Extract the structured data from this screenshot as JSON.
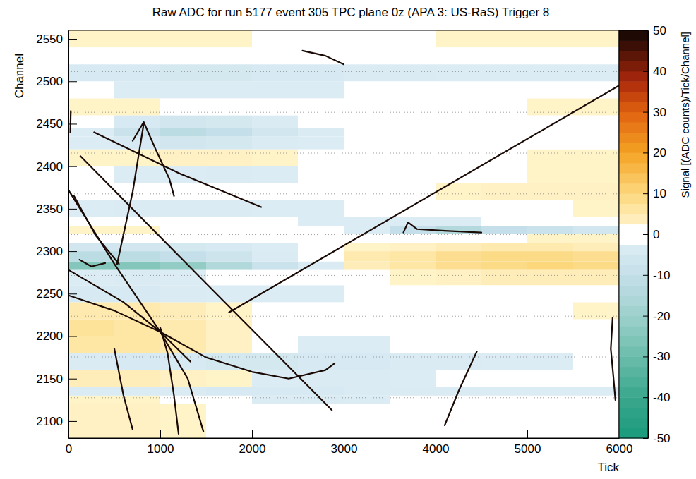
{
  "chart_data": {
    "type": "heatmap",
    "title": "Raw ADC for run 5177 event 305 TPC plane 0z (APA 3: US-RaS) Trigger 8",
    "x_label": "Tick",
    "y_label": "Channel",
    "xlim": [
      0,
      6000
    ],
    "xticks": [
      0,
      1000,
      2000,
      3000,
      4000,
      5000,
      6000
    ],
    "ylim": [
      2080,
      2560
    ],
    "yticks": [
      2100,
      2150,
      2200,
      2250,
      2300,
      2350,
      2400,
      2450,
      2500,
      2550
    ],
    "colorbar": {
      "label": "Signal [(ADC counts)/Tick/Channel]",
      "range": [
        -50,
        50
      ],
      "ticks": [
        -50,
        -40,
        -30,
        -20,
        -10,
        0,
        10,
        20,
        30,
        40,
        50
      ]
    },
    "x_bins": [
      0,
      500,
      1000,
      1500,
      2000,
      2500,
      3000,
      3500,
      4000,
      4500,
      5000,
      5500,
      6000
    ],
    "y_bins": [
      2080,
      2100,
      2120,
      2130,
      2140,
      2160,
      2180,
      2200,
      2220,
      2240,
      2260,
      2278,
      2288,
      2300,
      2310,
      2320,
      2330,
      2340,
      2360,
      2380,
      2400,
      2420,
      2435,
      2445,
      2460,
      2480,
      2500,
      2520,
      2540,
      2560
    ],
    "cells": [
      [
        3,
        3,
        2,
        1,
        0,
        1,
        0,
        0,
        1,
        1,
        0,
        0
      ],
      [
        3,
        3,
        2,
        0,
        -1,
        0,
        0,
        1,
        1,
        0,
        0,
        1
      ],
      [
        2,
        2,
        1,
        0,
        -2,
        -3,
        -2,
        -1,
        0,
        0,
        0,
        0
      ],
      [
        -3,
        -3,
        -3,
        -4,
        -4,
        -4,
        -3,
        -3,
        -3,
        -2,
        -2,
        -2
      ],
      [
        4,
        4,
        3,
        2,
        -2,
        -3,
        -3,
        -2,
        0,
        1,
        1,
        1
      ],
      [
        -3,
        -4,
        -4,
        -5,
        -5,
        -4,
        -4,
        -3,
        -3,
        -2,
        -2,
        -1
      ],
      [
        6,
        6,
        5,
        3,
        0,
        -2,
        -2,
        -1,
        0,
        0,
        0,
        0
      ],
      [
        7,
        6,
        5,
        3,
        1,
        0,
        -1,
        -1,
        0,
        0,
        0,
        1
      ],
      [
        5,
        5,
        4,
        2,
        0,
        -1,
        -1,
        -1,
        0,
        1,
        1,
        2
      ],
      [
        -4,
        -4,
        -3,
        -2,
        -2,
        -2,
        -1,
        -1,
        0,
        0,
        0,
        0
      ],
      [
        -2,
        -3,
        -2,
        -1,
        -1,
        0,
        1,
        2,
        3,
        4,
        4,
        4
      ],
      [
        -25,
        -25,
        -22,
        -15,
        -8,
        -3,
        4,
        6,
        8,
        9,
        10,
        9
      ],
      [
        -12,
        -12,
        -10,
        -7,
        -3,
        1,
        5,
        6,
        8,
        9,
        9,
        8
      ],
      [
        -6,
        -6,
        -5,
        -4,
        -2,
        0,
        2,
        3,
        4,
        5,
        5,
        4
      ],
      [
        1,
        0,
        -1,
        -1,
        -1,
        -1,
        0,
        0,
        1,
        1,
        2,
        2
      ],
      [
        2,
        2,
        1,
        0,
        0,
        -1,
        -2,
        -10,
        -14,
        -10,
        -8,
        -6
      ],
      [
        1,
        1,
        0,
        0,
        -1,
        -2,
        -2,
        -2,
        -2,
        -1,
        -1,
        0
      ],
      [
        -2,
        -3,
        -3,
        -3,
        -2,
        -2,
        -1,
        -1,
        0,
        1,
        1,
        2
      ],
      [
        1,
        0,
        -1,
        -1,
        -1,
        0,
        1,
        1,
        2,
        3,
        3,
        3
      ],
      [
        -1,
        -2,
        -2,
        -3,
        -2,
        -1,
        0,
        0,
        1,
        1,
        2,
        2
      ],
      [
        2,
        2,
        3,
        3,
        2,
        1,
        1,
        1,
        1,
        1,
        2,
        2
      ],
      [
        -2,
        -4,
        -6,
        -5,
        -3,
        -2,
        -1,
        0,
        0,
        0,
        0,
        0
      ],
      [
        -2,
        -8,
        -12,
        -10,
        -6,
        -3,
        -1,
        0,
        0,
        0,
        0,
        0
      ],
      [
        -1,
        -4,
        -6,
        -5,
        -3,
        -1,
        0,
        0,
        0,
        0,
        0,
        0
      ],
      [
        2,
        2,
        1,
        1,
        1,
        1,
        1,
        1,
        1,
        1,
        2,
        2
      ],
      [
        -1,
        -2,
        -2,
        -2,
        -2,
        -2,
        -1,
        -1,
        -1,
        0,
        0,
        0
      ],
      [
        -4,
        -4,
        -5,
        -5,
        -4,
        -4,
        -3,
        -3,
        -2,
        -2,
        -2,
        -2
      ],
      [
        -1,
        -1,
        -1,
        0,
        0,
        0,
        1,
        1,
        1,
        1,
        1,
        1
      ],
      [
        2,
        2,
        2,
        2,
        1,
        1,
        1,
        1,
        2,
        2,
        2,
        2
      ]
    ],
    "channel_boundaries": [
      2127.5,
      2175.5,
      2223.5,
      2271.5,
      2319.5,
      2367.5,
      2415.5,
      2463.5,
      2511.5
    ],
    "series": [
      {
        "type": "line",
        "color": "#1a0a05",
        "x": [
          1750,
          6000
        ],
        "values": [
          2228,
          2495
        ]
      },
      {
        "type": "line",
        "color": "#1a0a05",
        "x": [
          280,
          1200,
          2100
        ],
        "values": [
          2440,
          2392,
          2352
        ]
      },
      {
        "type": "line",
        "color": "#1a0a05",
        "x": [
          130,
          1500,
          2870
        ],
        "values": [
          2412,
          2262,
          2113
        ]
      },
      {
        "type": "line",
        "color": "#1a0a05",
        "x": [
          0,
          500,
          1000,
          1300,
          1470
        ],
        "values": [
          2372,
          2285,
          2205,
          2150,
          2088
        ]
      },
      {
        "type": "line",
        "color": "#1a0a05",
        "x": [
          0,
          600,
          1000,
          1330
        ],
        "values": [
          2278,
          2240,
          2205,
          2170
        ]
      },
      {
        "type": "line",
        "color": "#1a0a05",
        "x": [
          0,
          500,
          1000,
          1500,
          2000,
          2400,
          2800,
          2900
        ],
        "values": [
          2248,
          2230,
          2205,
          2175,
          2158,
          2150,
          2160,
          2168
        ]
      },
      {
        "type": "line",
        "color": "#1a0a05",
        "x": [
          1000,
          1080,
          1150,
          1200
        ],
        "values": [
          2210,
          2180,
          2130,
          2085
        ]
      },
      {
        "type": "line",
        "color": "#1a0a05",
        "x": [
          530,
          700,
          820
        ],
        "values": [
          2285,
          2370,
          2450
        ]
      },
      {
        "type": "line",
        "color": "#1a0a05",
        "x": [
          700,
          820,
          950,
          1100,
          1150
        ],
        "values": [
          2430,
          2452,
          2420,
          2385,
          2365
        ]
      },
      {
        "type": "line",
        "color": "#1a0a05",
        "x": [
          60,
          300,
          550
        ],
        "values": [
          2365,
          2318,
          2285
        ]
      },
      {
        "type": "line",
        "color": "#1a0a05",
        "x": [
          3650,
          3700,
          3800,
          4100,
          4500
        ],
        "values": [
          2322,
          2334,
          2326,
          2324,
          2322
        ]
      },
      {
        "type": "line",
        "color": "#1a0a05",
        "x": [
          2550,
          2800,
          3000
        ],
        "values": [
          2536,
          2530,
          2520
        ]
      },
      {
        "type": "line",
        "color": "#1a0a05",
        "x": [
          4100,
          4250,
          4450
        ],
        "values": [
          2095,
          2135,
          2182
        ]
      },
      {
        "type": "line",
        "color": "#1a0a05",
        "x": [
          5930,
          5910,
          5940,
          5960
        ],
        "values": [
          2222,
          2185,
          2150,
          2125
        ]
      },
      {
        "type": "line",
        "color": "#1a0a05",
        "x": [
          120,
          250,
          400
        ],
        "values": [
          2290,
          2282,
          2286
        ]
      },
      {
        "type": "line",
        "color": "#1a0a05",
        "x": [
          500,
          600,
          700
        ],
        "values": [
          2185,
          2130,
          2090
        ]
      },
      {
        "type": "line",
        "color": "#1a0a05",
        "x": [
          20,
          25
        ],
        "values": [
          2440,
          2465
        ]
      }
    ]
  }
}
